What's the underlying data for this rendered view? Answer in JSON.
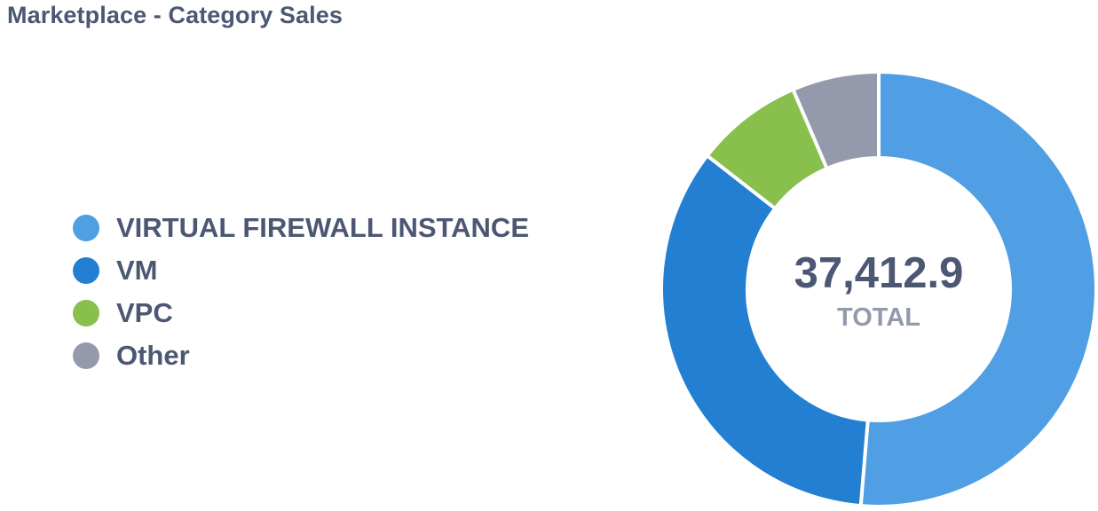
{
  "title": "Marketplace - Category Sales",
  "chart_data": {
    "type": "pie",
    "variant": "donut",
    "title": "Marketplace - Category Sales",
    "categories": [
      "VIRTUAL FIREWALL INSTANCE",
      "VM",
      "VPC",
      "Other"
    ],
    "values": [
      19200,
      12800,
      3000,
      2412.9
    ],
    "colors": [
      "#509ee3",
      "#227fd2",
      "#88bf4d",
      "#949aab"
    ],
    "total_value": "37,412.9",
    "total_label": "TOTAL",
    "legend_position": "left"
  }
}
